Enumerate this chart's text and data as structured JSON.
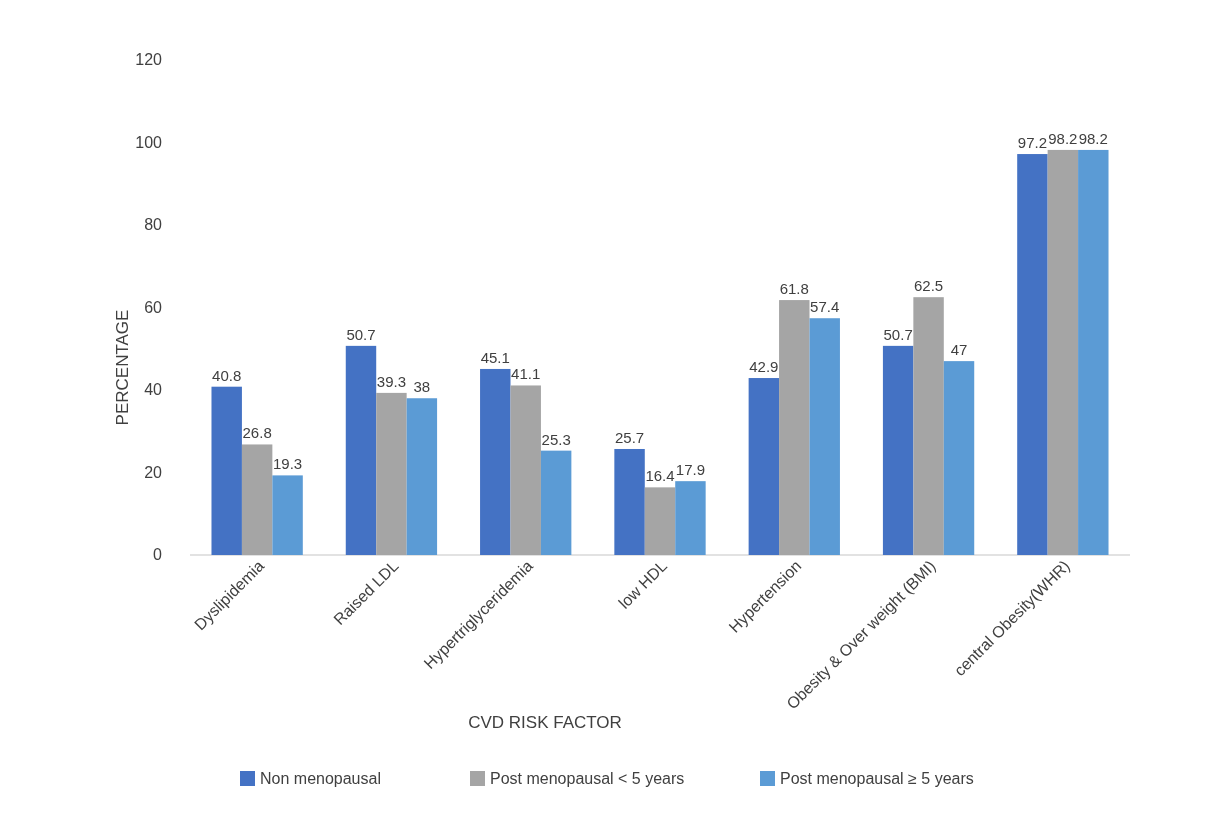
{
  "chart_data": {
    "type": "bar",
    "xlabel": "CVD RISK FACTOR",
    "ylabel": "PERCENTAGE",
    "categories": [
      "Dyslipidemia",
      "Raised LDL",
      "Hypertriglyceridemia",
      "low HDL",
      "Hypertension",
      "Obesity & Over weight (BMI)",
      "central Obesity(WHR)"
    ],
    "series": [
      {
        "name": "Non menopausal",
        "color": "#4472c4",
        "values": [
          40.8,
          50.7,
          45.1,
          25.7,
          42.9,
          50.7,
          97.2
        ]
      },
      {
        "name": "Post menopausal < 5 years",
        "color": "#a5a5a5",
        "values": [
          26.8,
          39.3,
          41.1,
          16.4,
          61.8,
          62.5,
          98.2
        ]
      },
      {
        "name": "Post menopausal ≥ 5 years",
        "color": "#5b9bd5",
        "values": [
          19.3,
          38,
          25.3,
          17.9,
          57.4,
          47,
          98.2
        ]
      }
    ],
    "ylim": [
      0,
      120
    ],
    "yticks": [
      0,
      20,
      40,
      60,
      80,
      100,
      120
    ],
    "data_labels": true,
    "grid": false,
    "legend": "bottom"
  }
}
